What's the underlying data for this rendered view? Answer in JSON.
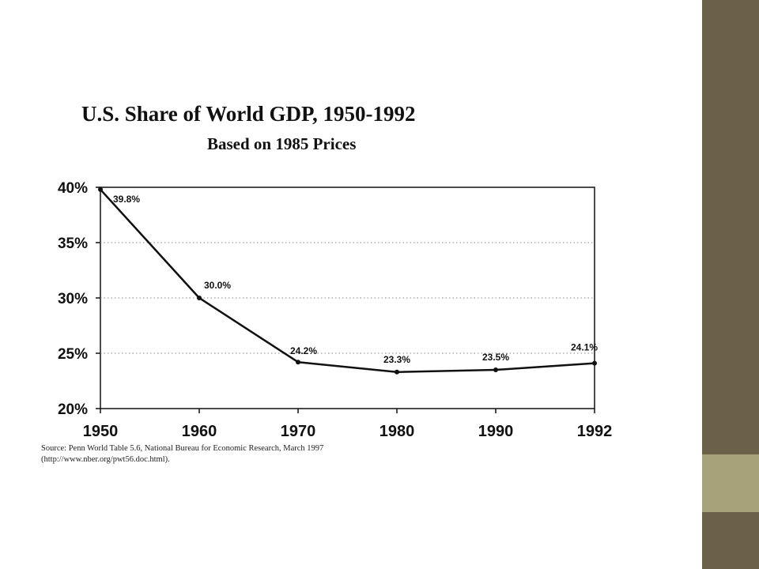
{
  "slide": {
    "colors": {
      "sidebar_dark": "#6b6149",
      "sidebar_light": "#a8a27a",
      "background": "#ffffff"
    }
  },
  "chart_data": {
    "type": "line",
    "title": "U.S. Share of World GDP, 1950-1992",
    "subtitle": "Based on 1985 Prices",
    "xlabel": "",
    "ylabel": "",
    "x": [
      1950,
      1960,
      1970,
      1980,
      1990,
      1992
    ],
    "x_tick_labels": [
      "1950",
      "1960",
      "1970",
      "1980",
      "1990",
      "1992"
    ],
    "x_categorical": true,
    "y_ticks": [
      20,
      25,
      30,
      35,
      40
    ],
    "y_tick_labels": [
      "20%",
      "25%",
      "30%",
      "35%",
      "40%"
    ],
    "ylim": [
      20,
      40
    ],
    "series": [
      {
        "values": [
          39.8,
          30.0,
          24.2,
          23.3,
          23.5,
          24.1
        ],
        "data_labels": [
          "39.8%",
          "30.0%",
          "24.2%",
          "23.3%",
          "23.5%",
          "24.1%"
        ],
        "color": "#111111"
      }
    ],
    "grid": "horizontal dotted",
    "legend": "none",
    "source_lines": [
      "Source:  Penn World Table 5.6, National Bureau for Economic Research, March 1997",
      "(http://www.nber.org/pwt56.doc.html)."
    ]
  }
}
